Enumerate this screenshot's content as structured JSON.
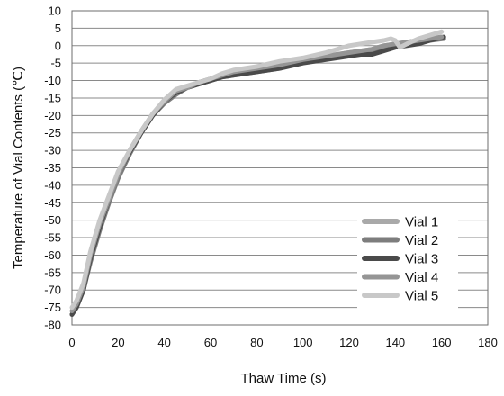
{
  "chart_data": {
    "type": "line",
    "title": "",
    "xlabel": "Thaw Time (s)",
    "ylabel": "Temperature of Vial Contents (℃)",
    "xlim": [
      0,
      180
    ],
    "ylim": [
      -80,
      10
    ],
    "xticks": [
      0,
      20,
      40,
      60,
      80,
      100,
      120,
      140,
      160,
      180
    ],
    "yticks": [
      10,
      5,
      0,
      -5,
      -10,
      -15,
      -20,
      -25,
      -30,
      -35,
      -40,
      -45,
      -50,
      -55,
      -60,
      -65,
      -70,
      -75,
      -80
    ],
    "grid": true,
    "legend_position": "bottom-right",
    "series": [
      {
        "name": "Vial 1",
        "color": "#a9a9a9",
        "x": [
          0,
          2,
          5,
          8,
          12,
          16,
          20,
          25,
          30,
          35,
          40,
          45,
          50,
          55,
          60,
          65,
          70,
          80,
          90,
          100,
          110,
          120,
          130,
          135,
          140,
          145,
          150,
          155,
          160
        ],
        "y": [
          -77,
          -74,
          -69,
          -61,
          -52,
          -45,
          -38,
          -31,
          -25,
          -20,
          -16,
          -13.5,
          -12,
          -10.5,
          -9.5,
          -8.5,
          -7.5,
          -6.5,
          -5.5,
          -4,
          -3,
          -2,
          -1,
          0,
          0.5,
          1,
          1.5,
          2,
          2.5
        ]
      },
      {
        "name": "Vial 2",
        "color": "#7d7d7d",
        "x": [
          0,
          2,
          5,
          8,
          12,
          16,
          20,
          25,
          30,
          35,
          40,
          45,
          50,
          55,
          60,
          65,
          70,
          80,
          90,
          100,
          110,
          120,
          130,
          135,
          140,
          145,
          150,
          155,
          161
        ],
        "y": [
          -77,
          -75,
          -70,
          -62,
          -53,
          -45,
          -38,
          -31,
          -25,
          -20,
          -16.5,
          -14,
          -12,
          -11,
          -10,
          -9,
          -8.5,
          -7.5,
          -6.5,
          -4.5,
          -3.5,
          -2.5,
          -1.5,
          -0.5,
          0,
          0.5,
          1,
          1.5,
          2
        ]
      },
      {
        "name": "Vial 3",
        "color": "#4a4a4a",
        "x": [
          0,
          2,
          5,
          8,
          12,
          16,
          20,
          25,
          30,
          35,
          40,
          45,
          50,
          55,
          60,
          65,
          70,
          80,
          90,
          100,
          110,
          120,
          125,
          130,
          135,
          140,
          145,
          150,
          155,
          161
        ],
        "y": [
          -77,
          -75,
          -70,
          -61,
          -52,
          -44,
          -37,
          -30.5,
          -25,
          -20,
          -16,
          -13.5,
          -12,
          -11,
          -10,
          -9,
          -8.5,
          -7.5,
          -6.5,
          -5,
          -4,
          -3,
          -2.5,
          -2.5,
          -1.5,
          -0.5,
          0,
          0.5,
          1.5,
          2.5
        ]
      },
      {
        "name": "Vial 4",
        "color": "#959595",
        "x": [
          0,
          2,
          5,
          8,
          12,
          16,
          20,
          25,
          30,
          35,
          40,
          45,
          50,
          55,
          60,
          65,
          70,
          80,
          90,
          100,
          110,
          120,
          130,
          135,
          140,
          145,
          150,
          155,
          160
        ],
        "y": [
          -76,
          -74,
          -69,
          -60,
          -51,
          -44,
          -37,
          -30,
          -24.5,
          -19.5,
          -16,
          -13,
          -12,
          -10.5,
          -9.5,
          -8.5,
          -7.5,
          -6.5,
          -5.5,
          -4,
          -3,
          -2,
          -1,
          0,
          0.5,
          1,
          1.5,
          2,
          2.5
        ]
      },
      {
        "name": "Vial 5",
        "color": "#c8c8c8",
        "x": [
          0,
          2,
          5,
          8,
          12,
          16,
          20,
          25,
          30,
          35,
          40,
          45,
          50,
          55,
          60,
          65,
          70,
          80,
          90,
          95,
          100,
          110,
          115,
          120,
          125,
          130,
          135,
          138,
          140,
          142,
          145,
          150,
          155,
          160
        ],
        "y": [
          -75,
          -73,
          -68,
          -59,
          -50,
          -43,
          -36,
          -30,
          -24.5,
          -19.5,
          -15.5,
          -12.5,
          -11.5,
          -10.5,
          -9.5,
          -8,
          -7,
          -6,
          -4.5,
          -4,
          -3.5,
          -2,
          -1,
          0,
          0.5,
          1,
          1.5,
          2,
          1.5,
          -0.5,
          0.5,
          2,
          3,
          4
        ]
      }
    ]
  }
}
